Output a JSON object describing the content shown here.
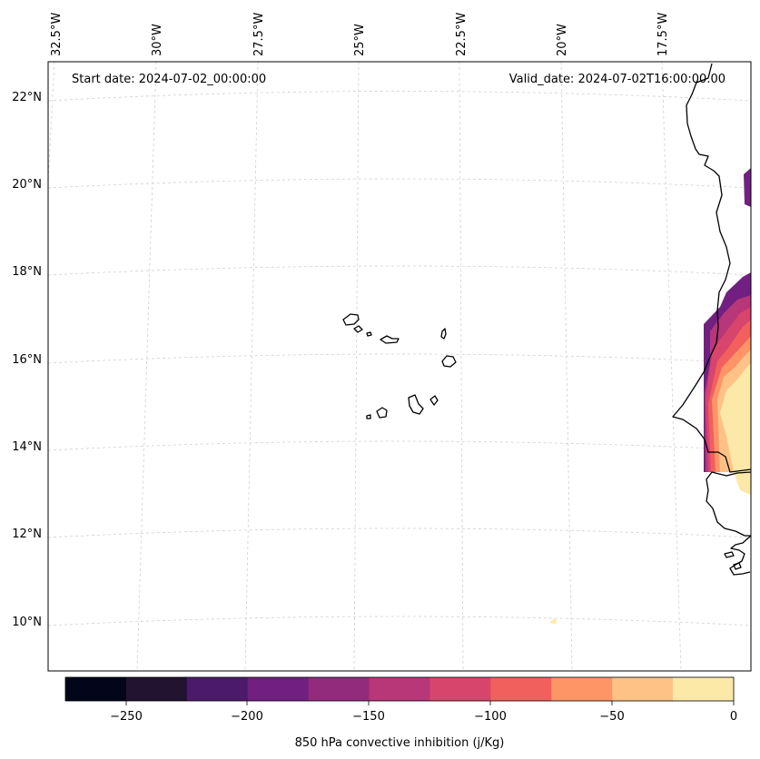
{
  "map": {
    "start_date_text": "Start date: 2024-07-02_00:00:00",
    "valid_date_text": "Valid_date: 2024-07-02T16:00:00.00",
    "longitude_labels": [
      "32.5°W",
      "30°W",
      "27.5°W",
      "25°W",
      "22.5°W",
      "20°W",
      "17.5°W"
    ],
    "latitude_labels": [
      "22°N",
      "20°N",
      "18°N",
      "16°N",
      "14°N",
      "12°N",
      "10°N"
    ],
    "region": "Cape Verde islands and West African coast (Senegal / Mauritania)",
    "variable": "850 hPa convective inhibition"
  },
  "colorbar": {
    "label": "850 hPa convective inhibition (j/Kg)",
    "tick_labels": [
      "−250",
      "−200",
      "−150",
      "−100",
      "−50",
      "0"
    ],
    "levels": [
      -275,
      -250,
      -225,
      -200,
      -175,
      -150,
      -125,
      -100,
      -75,
      -50,
      -25,
      0
    ],
    "colors": [
      "#03051a",
      "#221331",
      "#4c1a6b",
      "#711f81",
      "#932b7c",
      "#b73779",
      "#d8456c",
      "#f1605d",
      "#fd9567",
      "#fec287",
      "#fde9a7"
    ]
  }
}
